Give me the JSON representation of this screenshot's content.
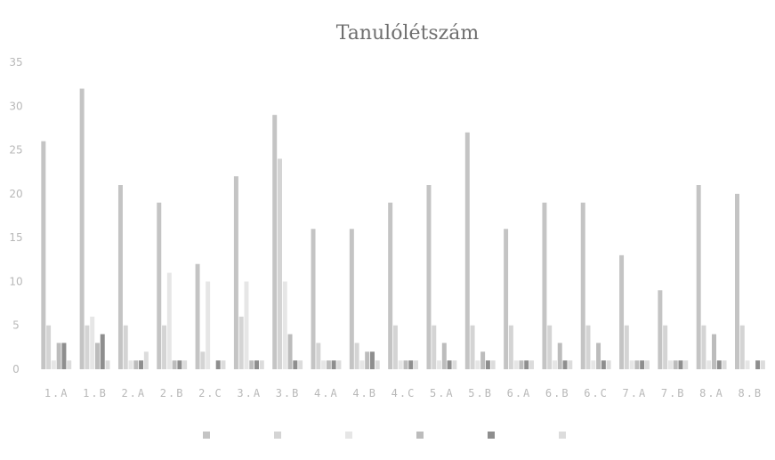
{
  "chart_data": {
    "type": "bar",
    "title": "Tanulólétszám",
    "xlabel": "",
    "ylabel": "",
    "ylim": [
      0,
      35
    ],
    "yticks": [
      0,
      5,
      10,
      15,
      20,
      25,
      30,
      35
    ],
    "ytick_labels": [
      "0",
      "5",
      "10",
      "15",
      "20",
      "25",
      "30",
      "35"
    ],
    "categories": [
      "1.A",
      "1.B",
      "2.A",
      "2.B",
      "2.C",
      "3.A",
      "3.B",
      "4.A",
      "4.B",
      "4.C",
      "5.A",
      "5.B",
      "6.A",
      "6.B",
      "6.C",
      "7.A",
      "7.B",
      "8.A",
      "8.B"
    ],
    "series": [
      {
        "name": "",
        "color": "#c4c4c4",
        "values": [
          26,
          32,
          21,
          19,
          12,
          22,
          29,
          16,
          16,
          19,
          21,
          27,
          16,
          19,
          19,
          13,
          9,
          21,
          20
        ]
      },
      {
        "name": "",
        "color": "#d4d4d4",
        "values": [
          5,
          5,
          5,
          5,
          2,
          6,
          24,
          3,
          3,
          5,
          5,
          5,
          5,
          5,
          5,
          5,
          5,
          5,
          5
        ]
      },
      {
        "name": "",
        "color": "#e6e6e6",
        "values": [
          1,
          6,
          1,
          11,
          10,
          10,
          10,
          1,
          1,
          1,
          1,
          1,
          1,
          1,
          1,
          1,
          1,
          1,
          1
        ]
      },
      {
        "name": "",
        "color": "#bcbcbc",
        "values": [
          3,
          3,
          1,
          1,
          0,
          1,
          4,
          1,
          2,
          1,
          3,
          2,
          1,
          3,
          3,
          1,
          1,
          4,
          0
        ]
      },
      {
        "name": "",
        "color": "#8e8e8e",
        "values": [
          3,
          4,
          1,
          1,
          1,
          1,
          1,
          1,
          2,
          1,
          1,
          1,
          1,
          1,
          1,
          1,
          1,
          1,
          1
        ]
      },
      {
        "name": "",
        "color": "#dcdcdc",
        "values": [
          1,
          1,
          2,
          1,
          1,
          1,
          1,
          1,
          1,
          1,
          1,
          1,
          1,
          1,
          1,
          1,
          1,
          1,
          1
        ]
      }
    ],
    "grid": false,
    "legend_position": "bottom",
    "legend_entries": [
      "",
      "",
      "",
      "",
      "",
      ""
    ]
  }
}
